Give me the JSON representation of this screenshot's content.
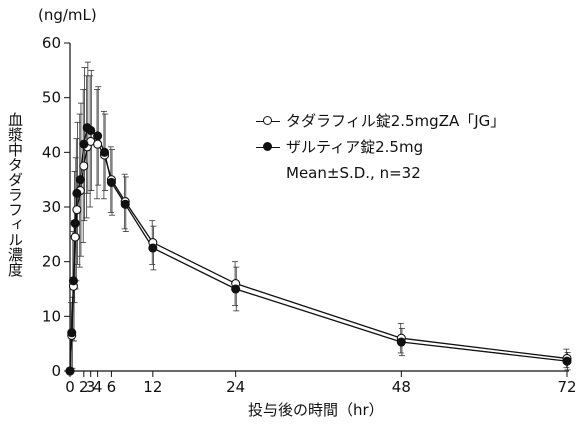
{
  "unit_label": "(ng/mL)",
  "y_title": "血漿中タダラフィル濃度",
  "x_title": "投与後の時間（hr）",
  "legend": {
    "series_a": "タダラフィル錠2.5mgZA「JG」",
    "series_b": "ザルティア錠2.5mg",
    "note": "Mean±S.D., n=32"
  },
  "chart_data": {
    "type": "line",
    "xlabel": "投与後の時間（hr）",
    "ylabel": "血漿中タダラフィル濃度",
    "xlim": [
      0,
      72
    ],
    "ylim": [
      0,
      60
    ],
    "x_ticks": [
      0,
      2,
      3,
      4,
      6,
      12,
      24,
      48,
      72
    ],
    "x_tick_labels": [
      "0",
      "2",
      "3",
      "4",
      "6",
      "12",
      "24",
      "48",
      "72"
    ],
    "y_ticks": [
      0,
      10,
      20,
      30,
      40,
      50,
      60
    ],
    "grid": false,
    "legend_position": "upper-right",
    "series": [
      {
        "name": "タダラフィル錠2.5mgZA「JG」",
        "marker": "open-circle",
        "color": "#111111",
        "x": [
          0,
          0.25,
          0.5,
          0.75,
          1,
          1.5,
          2,
          2.5,
          3,
          4,
          5,
          6,
          8,
          12,
          24,
          48,
          72
        ],
        "y": [
          0,
          6.5,
          15.5,
          24.5,
          29.5,
          33.0,
          37.5,
          41.0,
          42.0,
          41.5,
          39.5,
          35.0,
          31.0,
          23.5,
          16.0,
          6.0,
          2.3
        ],
        "sd": [
          0,
          6.0,
          10.0,
          12.0,
          13.0,
          14.0,
          14.0,
          13.0,
          12.0,
          10.0,
          8.0,
          6.0,
          5.0,
          4.0,
          4.0,
          2.7,
          1.7
        ]
      },
      {
        "name": "ザルティア錠2.5mg",
        "marker": "filled-circle",
        "color": "#111111",
        "x": [
          0,
          0.25,
          0.5,
          0.75,
          1,
          1.5,
          2,
          2.5,
          3,
          4,
          5,
          6,
          8,
          12,
          24,
          48,
          72
        ],
        "y": [
          0,
          7.0,
          16.5,
          27.0,
          32.5,
          35.0,
          41.5,
          44.5,
          44.0,
          43.0,
          40.0,
          34.5,
          30.5,
          22.5,
          15.0,
          5.3,
          1.8
        ],
        "sd": [
          0,
          6.5,
          11.0,
          12.0,
          13.0,
          14.0,
          14.0,
          12.0,
          11.0,
          9.0,
          7.0,
          6.0,
          5.0,
          4.0,
          4.0,
          2.5,
          1.6
        ]
      }
    ]
  }
}
